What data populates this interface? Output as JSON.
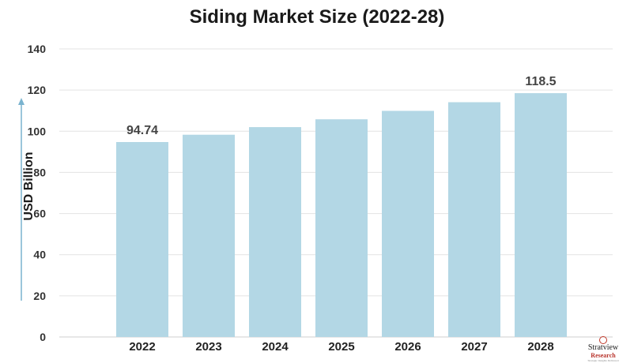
{
  "chart_data": {
    "type": "bar",
    "title": "Siding Market Size (2022-28)",
    "ylabel": "USD Billion",
    "xlabel": "",
    "categories": [
      "2022",
      "2023",
      "2024",
      "2025",
      "2026",
      "2027",
      "2028"
    ],
    "values": [
      94.74,
      98.3,
      102.0,
      105.8,
      109.9,
      114.1,
      118.5
    ],
    "data_labels": [
      "94.74",
      "",
      "",
      "",
      "",
      "",
      "118.5"
    ],
    "ylim": [
      0,
      140
    ],
    "yticks": [
      0,
      20,
      40,
      60,
      80,
      100,
      120,
      140
    ],
    "grid": true,
    "bar_color": "#b3d7e5",
    "axis_arrow_color": "#7ab3cf"
  },
  "logo": {
    "line1": "Stratview",
    "line2": "Research",
    "line3": "Strategic Insights Delivered"
  }
}
